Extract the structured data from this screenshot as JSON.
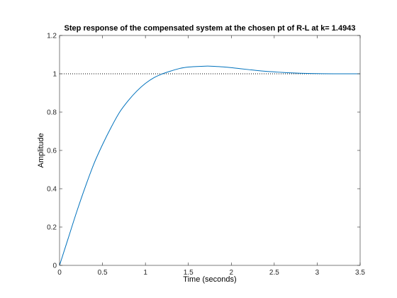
{
  "chart_data": {
    "type": "line",
    "title": "Step response of the compensated system at the chosen pt of R-L at k= 1.4943",
    "xlabel": "Time (seconds)",
    "ylabel": "Amplitude",
    "xlim": [
      0,
      3.5
    ],
    "ylim": [
      0,
      1.2
    ],
    "x_ticks": [
      "0",
      "0.5",
      "1",
      "1.5",
      "2",
      "2.5",
      "3",
      "3.5"
    ],
    "y_ticks": [
      "0",
      "0.2",
      "0.4",
      "0.6",
      "0.8",
      "1",
      "1.2"
    ],
    "grid": false,
    "colors": {
      "series": "#0072bd",
      "reference": "#000000",
      "axes": "#262626"
    },
    "series": [
      {
        "x": [
          0,
          0.1,
          0.2,
          0.3,
          0.4,
          0.5,
          0.6,
          0.7,
          0.8,
          0.9,
          1.0,
          1.1,
          1.2,
          1.3,
          1.4,
          1.5,
          1.6,
          1.7,
          1.75,
          1.8,
          1.9,
          2.0,
          2.1,
          2.2,
          2.3,
          2.4,
          2.5,
          2.6,
          2.8,
          3.0,
          3.2,
          3.5
        ],
        "y": [
          0,
          0.14,
          0.28,
          0.41,
          0.53,
          0.63,
          0.72,
          0.8,
          0.86,
          0.91,
          0.95,
          0.98,
          1.0,
          1.015,
          1.028,
          1.035,
          1.038,
          1.04,
          1.04,
          1.039,
          1.036,
          1.032,
          1.027,
          1.022,
          1.017,
          1.013,
          1.01,
          1.007,
          1.003,
          1.001,
          1.0,
          1.0
        ]
      }
    ],
    "reference_line": {
      "y": 1,
      "style": "dotted"
    }
  }
}
